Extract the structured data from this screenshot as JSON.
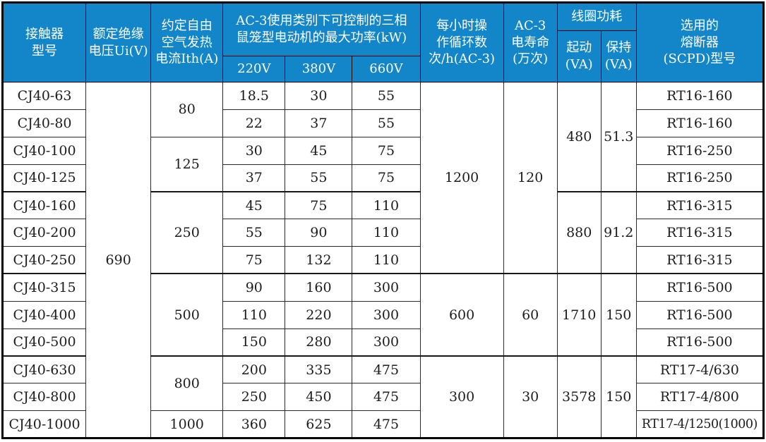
{
  "colors": {
    "header-bg": "#1286C8",
    "header-fg": "#FFFFFF",
    "grid-line": "#2A2A2A",
    "outer-border": "#000000"
  },
  "table": {
    "header": {
      "model": "接触器\n型号",
      "ui": "额定绝缘\n电压Ui(V)",
      "ith": "约定自由\n空气发热\n电流Ith(A)",
      "kw_group": "AC-3使用类别下可控制的三相\n鼠笼型电动机的最大功率(kW)",
      "v220": "220V",
      "v380": "380V",
      "v660": "660V",
      "cycles": "每小时操\n作循环数\n次/h(AC-3)",
      "life": "AC-3\n电寿命\n(万次)",
      "coil_group": "线圈功耗",
      "coil_start": "起动\n(VA)",
      "coil_hold": "保持\n(VA)",
      "fuse": "选用的\n熔断器\n(SCPD)型号"
    },
    "merged": {
      "ui": "690",
      "ith": [
        "80",
        "125",
        "250",
        "500",
        "800",
        "1000"
      ],
      "cycles": [
        "1200",
        "600",
        "300"
      ],
      "life": [
        "120",
        "60",
        "30"
      ],
      "start": [
        "480",
        "880",
        "1710",
        "3578"
      ],
      "hold": [
        "51.3",
        "91.2",
        "150",
        "150"
      ]
    },
    "rows": [
      {
        "model": "CJ40-63",
        "kw220": "18.5",
        "kw380": "30",
        "kw660": "55",
        "fuse": "RT16-160"
      },
      {
        "model": "CJ40-80",
        "kw220": "22",
        "kw380": "37",
        "kw660": "55",
        "fuse": "RT16-160"
      },
      {
        "model": "CJ40-100",
        "kw220": "30",
        "kw380": "45",
        "kw660": "75",
        "fuse": "RT16-250"
      },
      {
        "model": "CJ40-125",
        "kw220": "37",
        "kw380": "55",
        "kw660": "75",
        "fuse": "RT16-250"
      },
      {
        "model": "CJ40-160",
        "kw220": "45",
        "kw380": "75",
        "kw660": "110",
        "fuse": "RT16-315"
      },
      {
        "model": "CJ40-200",
        "kw220": "55",
        "kw380": "90",
        "kw660": "110",
        "fuse": "RT16-315"
      },
      {
        "model": "CJ40-250",
        "kw220": "75",
        "kw380": "132",
        "kw660": "110",
        "fuse": "RT16-315"
      },
      {
        "model": "CJ40-315",
        "kw220": "90",
        "kw380": "160",
        "kw660": "300",
        "fuse": "RT16-500"
      },
      {
        "model": "CJ40-400",
        "kw220": "110",
        "kw380": "220",
        "kw660": "300",
        "fuse": "RT16-500"
      },
      {
        "model": "CJ40-500",
        "kw220": "150",
        "kw380": "280",
        "kw660": "300",
        "fuse": "RT16-500"
      },
      {
        "model": "CJ40-630",
        "kw220": "200",
        "kw380": "335",
        "kw660": "475",
        "fuse": "RT17-4/630"
      },
      {
        "model": "CJ40-800",
        "kw220": "250",
        "kw380": "450",
        "kw660": "475",
        "fuse": "RT17-4/800"
      },
      {
        "model": "CJ40-1000",
        "kw220": "360",
        "kw380": "625",
        "kw660": "475",
        "fuse": "RT17-4/1250(1000)"
      }
    ]
  }
}
